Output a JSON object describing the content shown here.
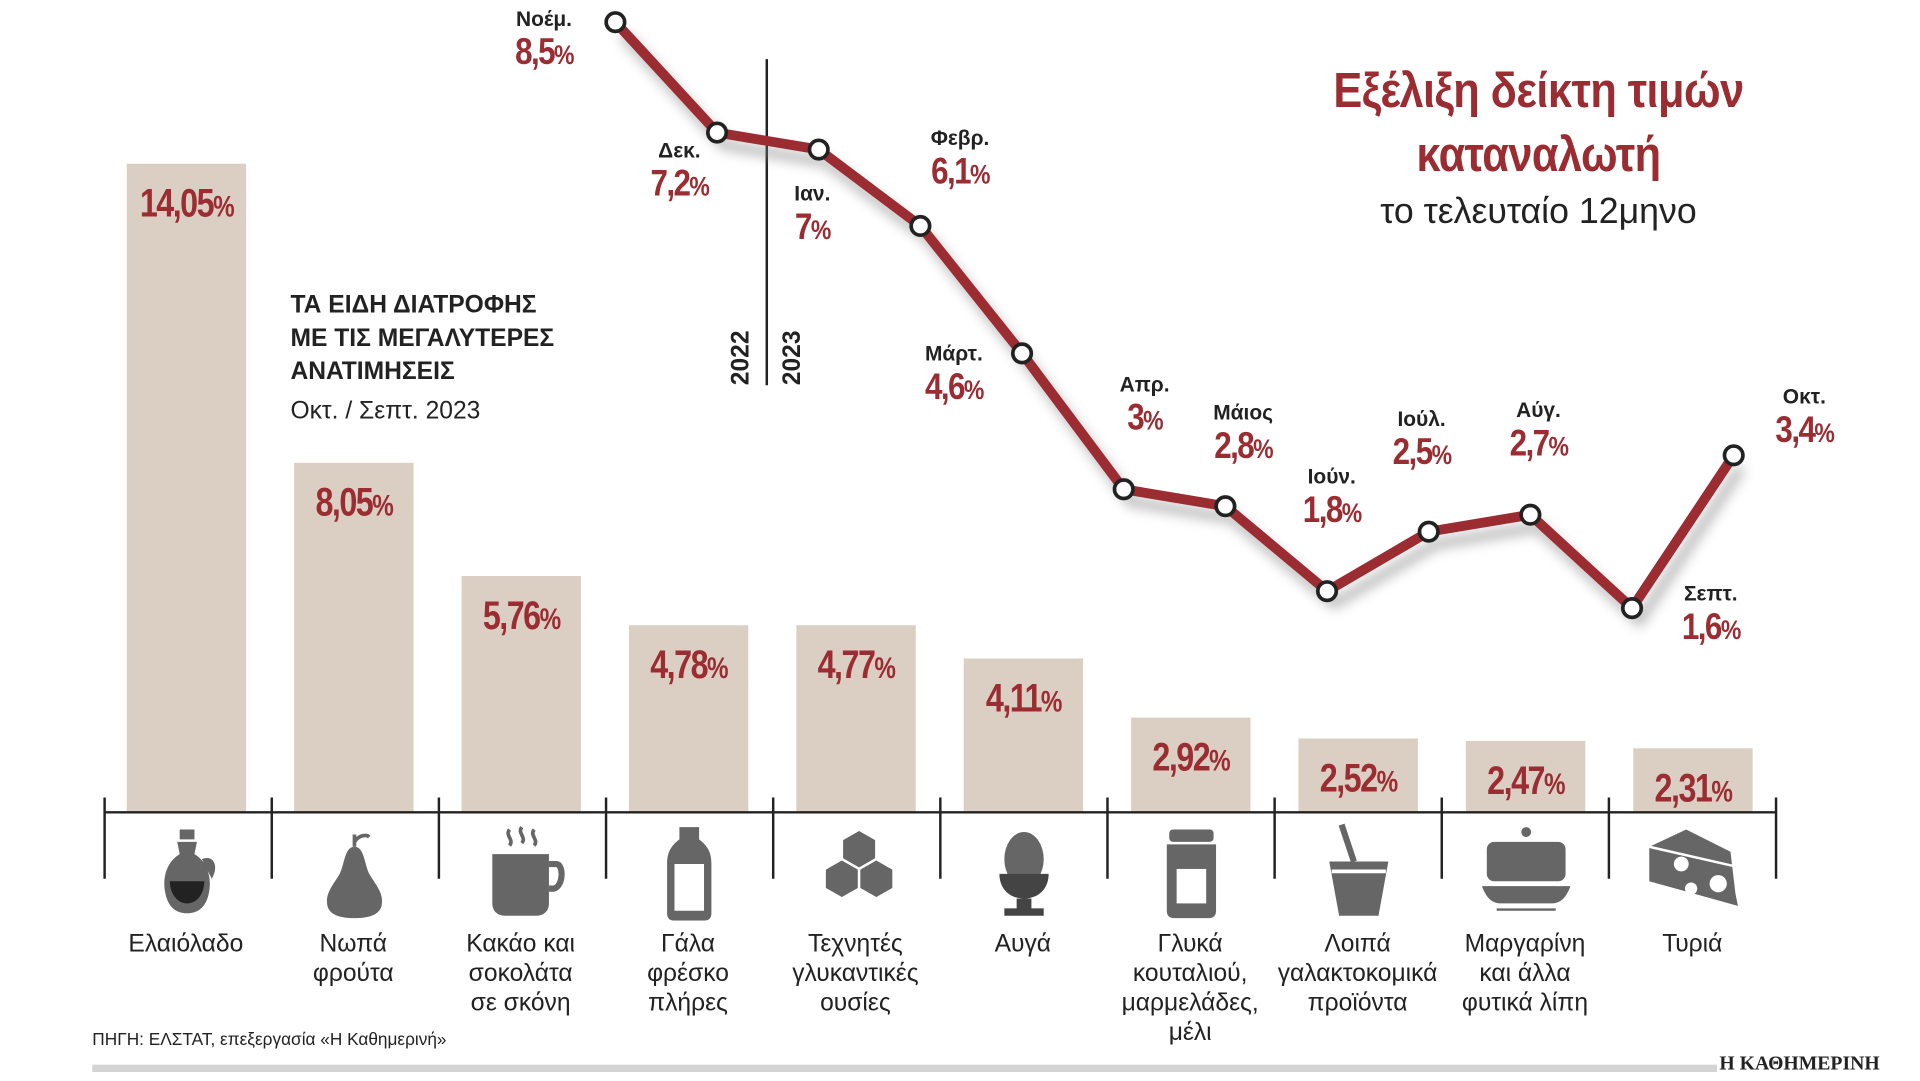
{
  "title_line1": "Εξέλιξη δείκτη τιμών",
  "title_line2": "καταναλωτή",
  "subtitle": "το τελευταίο 12μηνο",
  "bars_heading": [
    "ΤΑ ΕΙΔΗ ΔΙΑΤΡΟΦΗΣ",
    "ΜΕ ΤΙΣ ΜΕΓΑΛΥΤΕΡΕΣ",
    "ΑΝΑΤΙΜΗΣΕΙΣ"
  ],
  "bars_period": "Οκτ. / Σεπτ. 2023",
  "year_labels": [
    "2022",
    "2023"
  ],
  "source": "ΠΗΓΗ: ΕΛΣΤΑΤ, επεξεργασία «Η Καθημερινή»",
  "brand": "Η ΚΑΘΗΜΕΡΙΝΗ",
  "colors": {
    "accent": "#9b2c32",
    "bar": "#dbcfc3",
    "icon": "#666666"
  },
  "chart_data": [
    {
      "type": "line",
      "title": "Εξέλιξη δείκτη τιμών καταναλωτή",
      "subtitle": "το τελευταίο 12μηνο",
      "unit": "%",
      "categories": [
        "Νοέμ.",
        "Δεκ.",
        "Ιαν.",
        "Φεβρ.",
        "Μάρτ.",
        "Απρ.",
        "Μάιος",
        "Ιούν.",
        "Ιούλ.",
        "Αύγ.",
        "Σεπτ.",
        "Οκτ."
      ],
      "value_labels": [
        "8,5",
        "7,2",
        "7",
        "6,1",
        "4,6",
        "3",
        "2,8",
        "1,8",
        "2,5",
        "2,7",
        "1,6",
        "3,4"
      ],
      "values": [
        8.5,
        7.2,
        7,
        6.1,
        4.6,
        3,
        2.8,
        1.8,
        2.5,
        2.7,
        1.6,
        3.4
      ]
    },
    {
      "type": "bar",
      "title": "ΤΑ ΕΙΔΗ ΔΙΑΤΡΟΦΗΣ ΜΕ ΤΙΣ ΜΕΓΑΛΥΤΕΡΕΣ ΑΝΑΤΙΜΗΣΕΙΣ",
      "subtitle": "Οκτ. / Σεπτ. 2023",
      "unit": "%",
      "categories": [
        [
          "Ελαιόλαδο"
        ],
        [
          "Νωπά",
          "φρούτα"
        ],
        [
          "Κακάο και",
          "σοκολάτα",
          "σε σκόνη"
        ],
        [
          "Γάλα",
          "φρέσκο",
          "πλήρες"
        ],
        [
          "Τεχνητές",
          "γλυκαντικές",
          "ουσίες"
        ],
        [
          "Αυγά"
        ],
        [
          "Γλυκά",
          "κουταλιού,",
          "μαρμελάδες,",
          "μέλι"
        ],
        [
          "Λοιπά",
          "γαλακτοκομικά",
          "προϊόντα"
        ],
        [
          "Μαργαρίνη",
          "και άλλα",
          "φυτικά λίπη"
        ],
        [
          "Τυριά"
        ]
      ],
      "icons": [
        "olive-oil-icon",
        "pear-icon",
        "cocoa-cup-icon",
        "milk-bottle-icon",
        "sugar-cubes-icon",
        "egg-icon",
        "jam-jar-icon",
        "yogurt-icon",
        "butter-dish-icon",
        "cheese-icon"
      ],
      "value_labels": [
        "14,05",
        "8,05",
        "5,76",
        "4,78",
        "4,77",
        "4,11",
        "2,92",
        "2,52",
        "2,47",
        "2,31"
      ],
      "values": [
        14.05,
        8.05,
        5.76,
        4.78,
        4.77,
        4.11,
        2.92,
        2.52,
        2.47,
        2.31
      ]
    }
  ]
}
